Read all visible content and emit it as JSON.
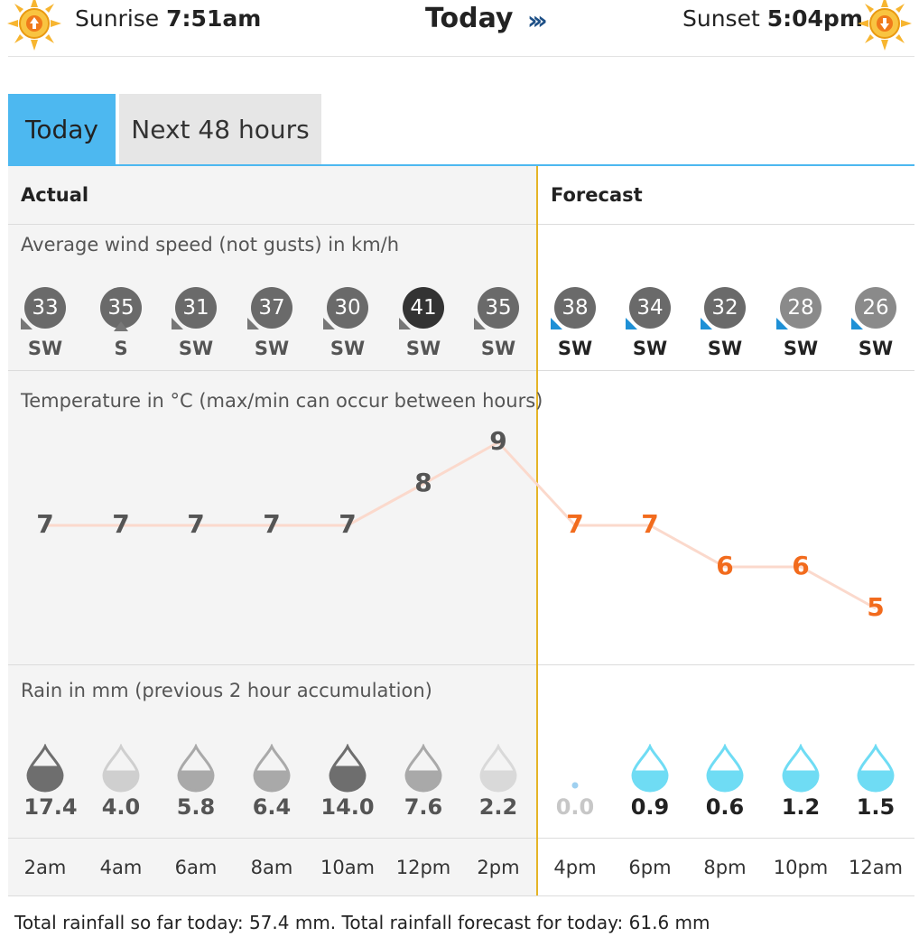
{
  "header": {
    "sunrise_label": "Sunrise",
    "sunrise_time": "7:51am",
    "title": "Today",
    "next_icon": "double-chevron-right",
    "sunset_label": "Sunset",
    "sunset_time": "5:04pm"
  },
  "tabs": [
    {
      "label": "Today",
      "active": true
    },
    {
      "label": "Next 48 hours",
      "active": false
    }
  ],
  "section_headers": {
    "actual": "Actual",
    "forecast": "Forecast"
  },
  "wind": {
    "label": "Average wind speed (not gusts) in km/h",
    "items": [
      {
        "speed": "33",
        "dir": "SW",
        "kind": "actual",
        "color": "#6a6a6a"
      },
      {
        "speed": "35",
        "dir": "S",
        "kind": "actual",
        "color": "#6a6a6a"
      },
      {
        "speed": "31",
        "dir": "SW",
        "kind": "actual",
        "color": "#6a6a6a"
      },
      {
        "speed": "37",
        "dir": "SW",
        "kind": "actual",
        "color": "#6a6a6a"
      },
      {
        "speed": "30",
        "dir": "SW",
        "kind": "actual",
        "color": "#6a6a6a"
      },
      {
        "speed": "41",
        "dir": "SW",
        "kind": "actual",
        "color": "#333333"
      },
      {
        "speed": "35",
        "dir": "SW",
        "kind": "actual",
        "color": "#6a6a6a"
      },
      {
        "speed": "38",
        "dir": "SW",
        "kind": "forecast",
        "color": "#6a6a6a"
      },
      {
        "speed": "34",
        "dir": "SW",
        "kind": "forecast",
        "color": "#6a6a6a"
      },
      {
        "speed": "32",
        "dir": "SW",
        "kind": "forecast",
        "color": "#6a6a6a"
      },
      {
        "speed": "28",
        "dir": "SW",
        "kind": "forecast",
        "color": "#8a8a8a"
      },
      {
        "speed": "26",
        "dir": "SW",
        "kind": "forecast",
        "color": "#8a8a8a"
      }
    ]
  },
  "temperature": {
    "label": "Temperature in °C (max/min can occur between hours)",
    "values": [
      7,
      7,
      7,
      7,
      7,
      8,
      9,
      7,
      7,
      6,
      6,
      5
    ],
    "kinds": [
      "actual",
      "actual",
      "actual",
      "actual",
      "actual",
      "actual",
      "actual",
      "forecast",
      "forecast",
      "forecast",
      "forecast",
      "forecast"
    ],
    "actual_color": "#555555",
    "forecast_color": "#f26b1d",
    "line_color": "#fbd9cc"
  },
  "rain": {
    "label": "Rain in mm (previous 2 hour accumulation)",
    "items": [
      {
        "value": "17.4",
        "kind": "actual",
        "fill": "#6e6e6e",
        "level": 0.55
      },
      {
        "value": "4.0",
        "kind": "actual",
        "fill": "#cfcfcf",
        "level": 0.45
      },
      {
        "value": "5.8",
        "kind": "actual",
        "fill": "#a9a9a9",
        "level": 0.45
      },
      {
        "value": "6.4",
        "kind": "actual",
        "fill": "#a9a9a9",
        "level": 0.45
      },
      {
        "value": "14.0",
        "kind": "actual",
        "fill": "#6e6e6e",
        "level": 0.55
      },
      {
        "value": "7.6",
        "kind": "actual",
        "fill": "#a9a9a9",
        "level": 0.45
      },
      {
        "value": "2.2",
        "kind": "actual",
        "fill": "#d9d9d9",
        "level": 0.45
      },
      {
        "value": "0.0",
        "kind": "zero",
        "fill": "#9fd0f0",
        "level": 0
      },
      {
        "value": "0.9",
        "kind": "forecast",
        "fill": "#6fdcf4",
        "level": 0.45
      },
      {
        "value": "0.6",
        "kind": "forecast",
        "fill": "#6fdcf4",
        "level": 0.45
      },
      {
        "value": "1.2",
        "kind": "forecast",
        "fill": "#6fdcf4",
        "level": 0.45
      },
      {
        "value": "1.5",
        "kind": "forecast",
        "fill": "#6fdcf4",
        "level": 0.45
      }
    ]
  },
  "times": [
    "2am",
    "4am",
    "6am",
    "8am",
    "10am",
    "12pm",
    "2pm",
    "4pm",
    "6pm",
    "8pm",
    "10pm",
    "12am"
  ],
  "footer": "Total rainfall so far today: 57.4 mm. Total rainfall forecast for today: 61.6 mm",
  "colors": {
    "tab_active": "#4db8f0",
    "divider": "#e5b426",
    "sun": "#f7a81b",
    "forecast_arrow": "#1e90d6"
  }
}
